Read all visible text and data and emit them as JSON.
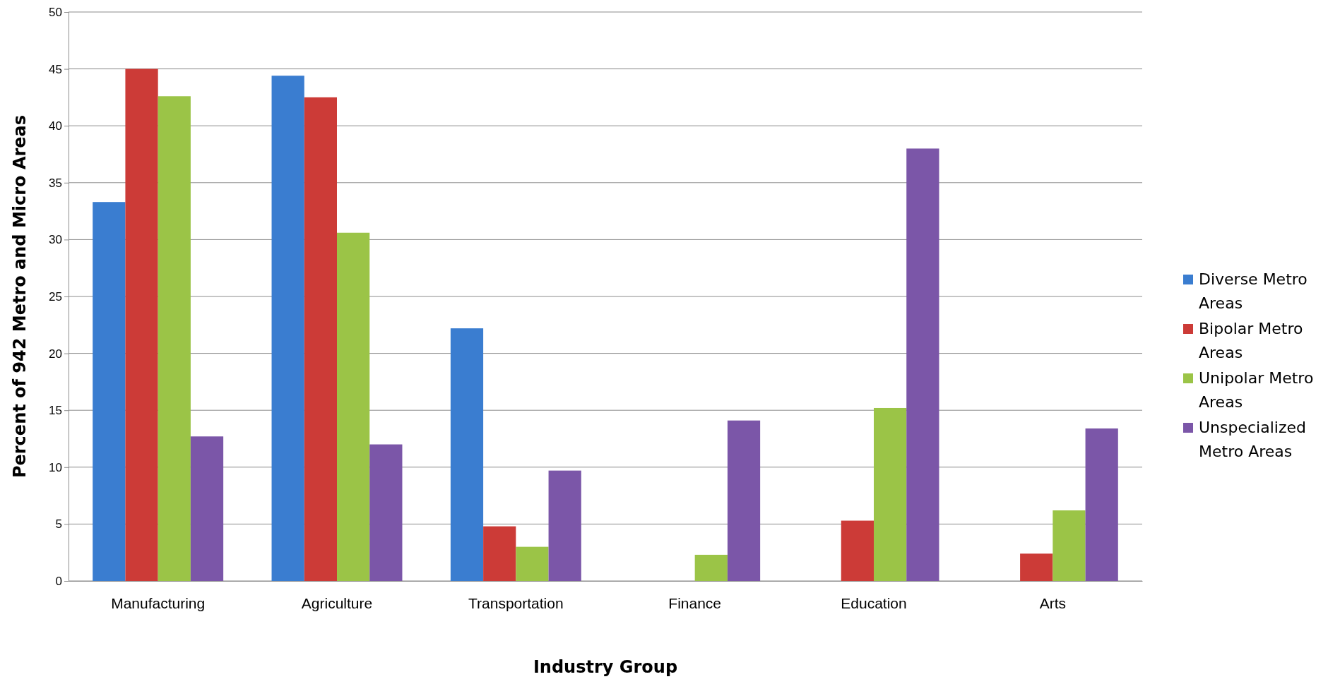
{
  "chart_data": {
    "type": "bar",
    "xlabel": "Industry Group",
    "ylabel": "Percent of 942 Metro and Micro Areas",
    "categories": [
      "Manufacturing",
      "Agriculture",
      "Transportation",
      "Finance",
      "Education",
      "Arts"
    ],
    "series": [
      {
        "name": "Diverse Metro Areas",
        "color": "#3a7dd0",
        "values": [
          33.3,
          44.4,
          22.2,
          0,
          0,
          0
        ]
      },
      {
        "name": "Bipolar Metro Areas",
        "color": "#cc3b37",
        "values": [
          45.0,
          42.5,
          4.8,
          0,
          5.3,
          2.4
        ]
      },
      {
        "name": "Unipolar Metro Areas",
        "color": "#9bc447",
        "values": [
          42.6,
          30.6,
          3.0,
          2.3,
          15.2,
          6.2
        ]
      },
      {
        "name": "Unspecialized Metro Areas",
        "color": "#7b56a8",
        "values": [
          12.7,
          12.0,
          9.7,
          14.1,
          38.0,
          13.4
        ]
      }
    ],
    "ylim": [
      0,
      50
    ],
    "yticks": [
      0,
      5,
      10,
      15,
      20,
      25,
      30,
      35,
      40,
      45,
      50
    ],
    "grid": "y",
    "legend": "right"
  }
}
